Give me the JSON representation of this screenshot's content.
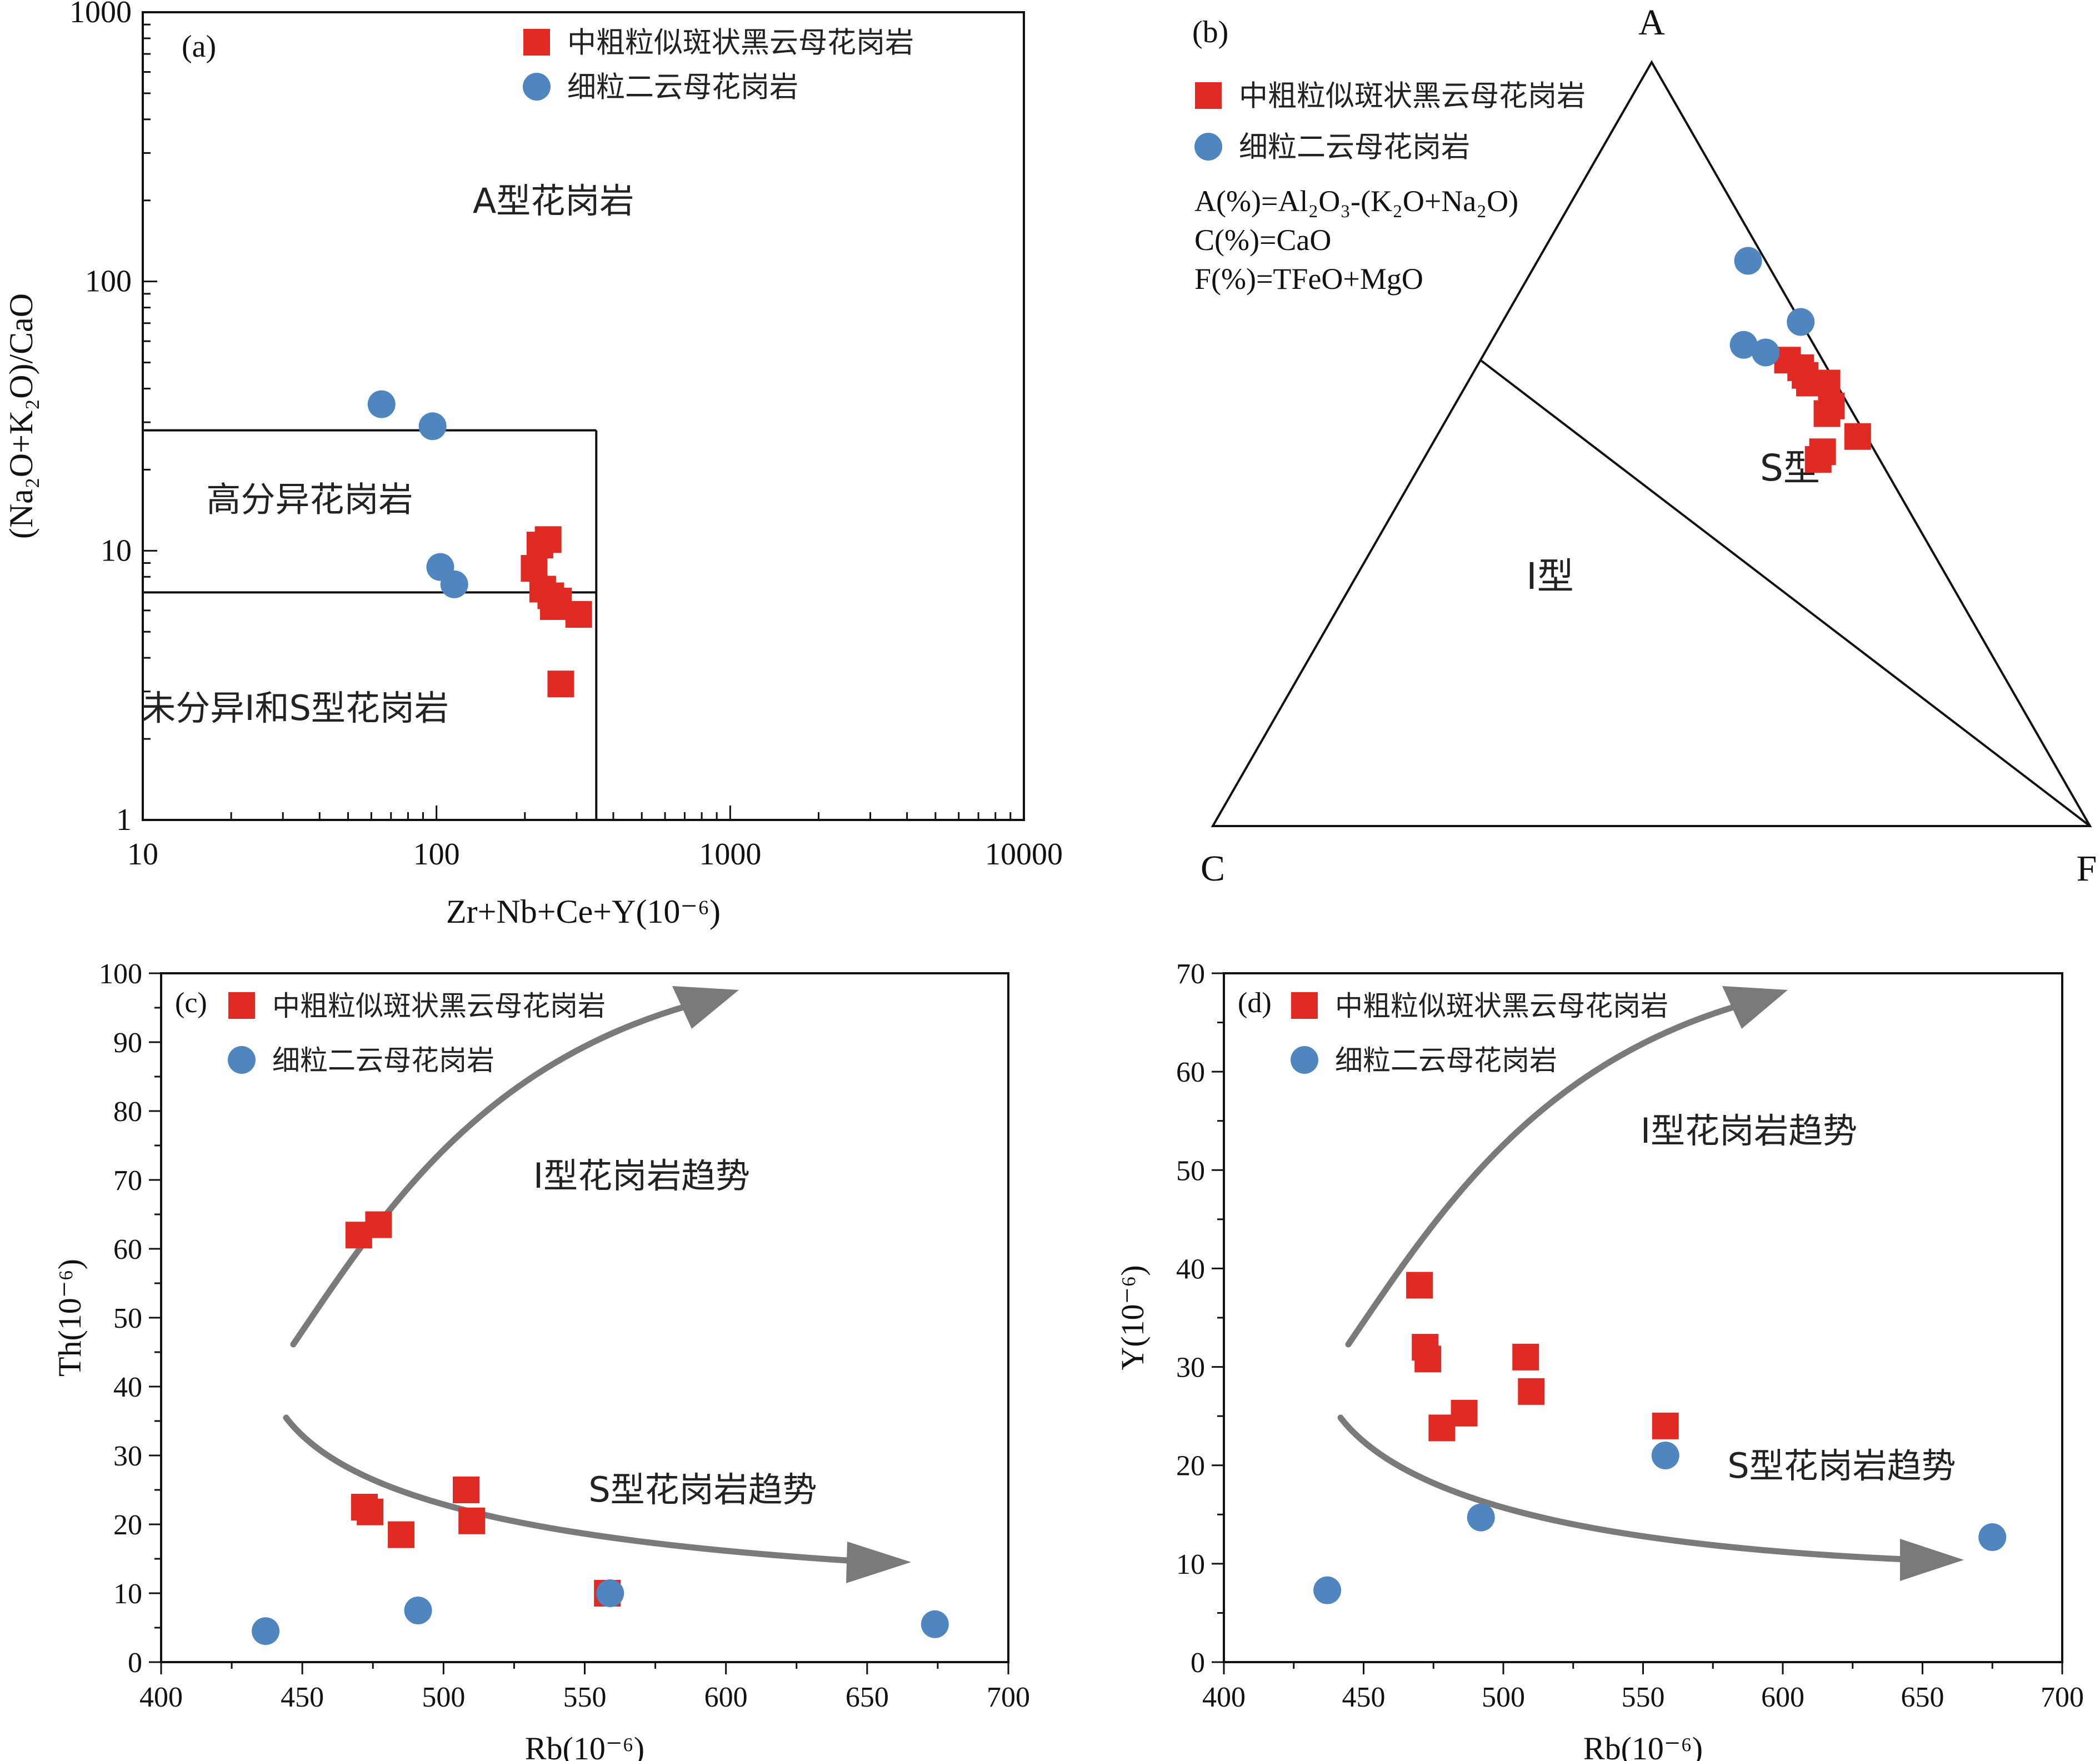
{
  "colors": {
    "red": "#e02a23",
    "blue": "#4f86bf",
    "arrow": "#7a7a7a",
    "line": "#111111"
  },
  "panels": [
    {
      "id": "a",
      "panel_label": "(a)",
      "chart_data": {
        "type": "scatter",
        "xscale": "log",
        "yscale": "log",
        "xlim": [
          10,
          10000
        ],
        "ylim": [
          1,
          1000
        ],
        "xlabel": "Zr+Nb+Ce+Y(10⁻⁶)",
        "ylabel": "(Na₂O+K₂O)/CaO",
        "xticks": [
          "10",
          "100",
          "1000",
          "10000"
        ],
        "yticks": [
          "1",
          "10",
          "100",
          "1000"
        ],
        "legend": [
          "中粗粒似斑状黑云母花岗岩",
          "细粒二云母花岗岩"
        ],
        "legend_position": "top-right",
        "region_labels": [
          "A型花岗岩",
          "高分异花岗岩",
          "未分异I和S型花岗岩"
        ],
        "boundaries": {
          "x": 350,
          "y_upper": 28,
          "y_lower": 7
        },
        "series": [
          {
            "name": "中粗粒似斑状黑云母花岗岩",
            "marker": "square",
            "color": "#e02a23",
            "points": [
              [
                240,
                11
              ],
              [
                225,
                10.5
              ],
              [
                215,
                8.6
              ],
              [
                230,
                7.2
              ],
              [
                245,
                6.8
              ],
              [
                260,
                6.5
              ],
              [
                250,
                6.2
              ],
              [
                305,
                5.8
              ],
              [
                265,
                3.2
              ]
            ]
          },
          {
            "name": "细粒二云母花岗岩",
            "marker": "circle",
            "color": "#4f86bf",
            "points": [
              [
                65,
                35
              ],
              [
                97,
                29
              ],
              [
                103,
                8.7
              ],
              [
                115,
                7.5
              ]
            ]
          }
        ]
      }
    },
    {
      "id": "b",
      "panel_label": "(b)",
      "chart_data": {
        "type": "ternary",
        "apex_labels": {
          "top": "A",
          "left": "C",
          "right": "F"
        },
        "legend": [
          "中粗粒似斑状黑云母花岗岩",
          "细粒二云母花岗岩"
        ],
        "legend_position": "top-left",
        "formulas": [
          "A(%)=Al₂O₃-(K₂O+Na₂O)",
          "C(%)=CaO",
          "F(%)=TFeO+MgO"
        ],
        "region_labels": [
          "I型",
          "S型"
        ],
        "series": [
          {
            "name": "中粗粒似斑状黑云母花岗岩",
            "marker": "square",
            "color": "#e02a23",
            "points": [
              [
                61,
                4,
                35
              ],
              [
                60,
                3,
                37
              ],
              [
                59,
                3,
                38
              ],
              [
                58,
                3,
                39
              ],
              [
                55,
                2,
                43
              ],
              [
                54,
                3,
                43
              ],
              [
                58,
                1,
                41
              ],
              [
                58,
                2,
                40
              ],
              [
                51,
                1,
                48
              ],
              [
                49,
                6,
                45
              ],
              [
                48,
                7,
                45
              ]
            ]
          },
          {
            "name": "细粒二云母花岗岩",
            "marker": "circle",
            "color": "#4f86bf",
            "points": [
              [
                74,
                2,
                24
              ],
              [
                63,
                8,
                29
              ],
              [
                66,
                0,
                34
              ],
              [
                62,
                6,
                32
              ]
            ]
          }
        ]
      }
    },
    {
      "id": "c",
      "panel_label": "(c)",
      "chart_data": {
        "type": "scatter",
        "xlim": [
          400,
          700
        ],
        "ylim": [
          0,
          100
        ],
        "xlabel": "Rb(10⁻⁶)",
        "ylabel": "Th(10⁻⁶)",
        "xticks": [
          "400",
          "450",
          "500",
          "550",
          "600",
          "650",
          "700"
        ],
        "yticks": [
          "0",
          "10",
          "20",
          "30",
          "40",
          "50",
          "60",
          "70",
          "80",
          "90",
          "100"
        ],
        "legend": [
          "中粗粒似斑状黑云母花岗岩",
          "细粒二云母花岗岩"
        ],
        "legend_position": "top-left",
        "annotations": [
          "I型花岗岩趋势",
          "S型花岗岩趋势"
        ],
        "series": [
          {
            "name": "中粗粒似斑状黑云母花岗岩",
            "marker": "square",
            "color": "#e02a23",
            "points": [
              [
                470,
                62
              ],
              [
                477,
                63.5
              ],
              [
                472,
                22.5
              ],
              [
                474,
                21.8
              ],
              [
                485,
                18.5
              ],
              [
                508,
                25
              ],
              [
                510,
                20.5
              ],
              [
                558,
                10
              ]
            ]
          },
          {
            "name": "细粒二云母花岗岩",
            "marker": "circle",
            "color": "#4f86bf",
            "points": [
              [
                437,
                4.5
              ],
              [
                491,
                7.5
              ],
              [
                559,
                10
              ],
              [
                674,
                5.5
              ]
            ]
          }
        ]
      }
    },
    {
      "id": "d",
      "panel_label": "(d)",
      "chart_data": {
        "type": "scatter",
        "xlim": [
          400,
          700
        ],
        "ylim": [
          0,
          70
        ],
        "xlabel": "Rb(10⁻⁶)",
        "ylabel": "Y(10⁻⁶)",
        "xticks": [
          "400",
          "450",
          "500",
          "550",
          "600",
          "650",
          "700"
        ],
        "yticks": [
          "0",
          "10",
          "20",
          "30",
          "40",
          "50",
          "60",
          "70"
        ],
        "legend": [
          "中粗粒似斑状黑云母花岗岩",
          "细粒二云母花岗岩"
        ],
        "legend_position": "top-left",
        "annotations": [
          "I型花岗岩趋势",
          "S型花岗岩趋势"
        ],
        "series": [
          {
            "name": "中粗粒似斑状黑云母花岗岩",
            "marker": "square",
            "color": "#e02a23",
            "points": [
              [
                470,
                38.3
              ],
              [
                472,
                32
              ],
              [
                473,
                30.8
              ],
              [
                478,
                23.8
              ],
              [
                486,
                25.3
              ],
              [
                508,
                31
              ],
              [
                510,
                27.5
              ],
              [
                558,
                24
              ]
            ]
          },
          {
            "name": "细粒二云母花岗岩",
            "marker": "circle",
            "color": "#4f86bf",
            "points": [
              [
                437,
                7.3
              ],
              [
                492,
                14.7
              ],
              [
                558,
                21
              ],
              [
                675,
                12.7
              ]
            ]
          }
        ]
      }
    }
  ]
}
